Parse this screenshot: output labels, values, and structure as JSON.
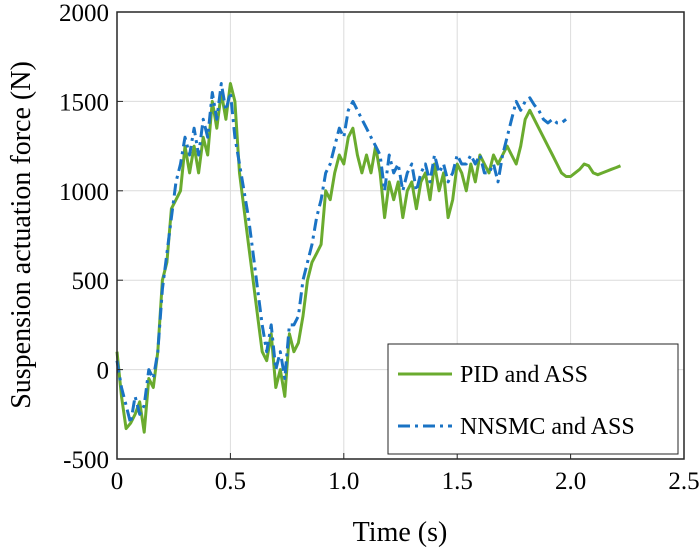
{
  "chart_data": {
    "type": "line",
    "xlabel": "Time (s)",
    "ylabel": "Suspension actuation force (N)",
    "xlim": [
      0,
      2.5
    ],
    "ylim": [
      -500,
      2000
    ],
    "xticks": [
      "0",
      "0.5",
      "1.0",
      "1.5",
      "2.0",
      "2.5"
    ],
    "xtick_values": [
      0,
      0.5,
      1.0,
      1.5,
      2.0,
      2.5
    ],
    "yticks": [
      "-500",
      "0",
      "500",
      "1000",
      "1500",
      "2000"
    ],
    "ytick_values": [
      -500,
      0,
      500,
      1000,
      1500,
      2000
    ],
    "grid": true,
    "legend_position": "bottom-right",
    "series": [
      {
        "name": "PID and ASS",
        "color": "#6aab2e",
        "style": "solid",
        "x": [
          0,
          0.02,
          0.04,
          0.06,
          0.08,
          0.1,
          0.12,
          0.14,
          0.16,
          0.18,
          0.2,
          0.22,
          0.24,
          0.26,
          0.28,
          0.3,
          0.32,
          0.34,
          0.36,
          0.38,
          0.4,
          0.42,
          0.44,
          0.46,
          0.48,
          0.5,
          0.52,
          0.54,
          0.56,
          0.58,
          0.6,
          0.62,
          0.64,
          0.66,
          0.68,
          0.7,
          0.72,
          0.74,
          0.76,
          0.78,
          0.8,
          0.82,
          0.84,
          0.86,
          0.88,
          0.9,
          0.92,
          0.94,
          0.96,
          0.98,
          1.0,
          1.02,
          1.04,
          1.06,
          1.08,
          1.1,
          1.12,
          1.14,
          1.16,
          1.18,
          1.2,
          1.22,
          1.24,
          1.26,
          1.28,
          1.3,
          1.32,
          1.34,
          1.36,
          1.38,
          1.4,
          1.42,
          1.44,
          1.46,
          1.48,
          1.5,
          1.52,
          1.54,
          1.56,
          1.58,
          1.6,
          1.62,
          1.64,
          1.66,
          1.68,
          1.7,
          1.72,
          1.74,
          1.76,
          1.78,
          1.8,
          1.82,
          1.84,
          1.86,
          1.88,
          1.9,
          1.92,
          1.94,
          1.96,
          1.98,
          2.0,
          2.02,
          2.04,
          2.06,
          2.08,
          2.1,
          2.12,
          2.14,
          2.16,
          2.18,
          2.2,
          2.22
        ],
        "y": [
          100,
          -150,
          -330,
          -300,
          -250,
          -180,
          -350,
          -50,
          -100,
          100,
          500,
          600,
          900,
          950,
          1000,
          1250,
          1100,
          1250,
          1100,
          1300,
          1200,
          1500,
          1350,
          1550,
          1400,
          1600,
          1500,
          1100,
          900,
          700,
          500,
          300,
          100,
          50,
          200,
          -100,
          0,
          -150,
          200,
          100,
          150,
          300,
          500,
          600,
          650,
          700,
          1000,
          950,
          1100,
          1200,
          1150,
          1300,
          1350,
          1200,
          1100,
          1200,
          1100,
          1250,
          1100,
          850,
          1050,
          950,
          1050,
          850,
          1000,
          1050,
          900,
          1050,
          1100,
          950,
          1150,
          1000,
          1100,
          850,
          950,
          1150,
          1100,
          1000,
          1150,
          1050,
          1200,
          1150,
          1100,
          1200,
          1150,
          1200,
          1250,
          1200,
          1150,
          1250,
          1400,
          1450,
          1400,
          1350,
          1300,
          1250,
          1200,
          1150,
          1100,
          1080,
          1080,
          1100,
          1120,
          1150,
          1140,
          1100,
          1090,
          1100,
          1110,
          1120,
          1130,
          1140
        ]
      },
      {
        "name": "NNSMC and ASS",
        "color": "#1a73c4",
        "style": "dashdot",
        "x": [
          0,
          0.02,
          0.04,
          0.06,
          0.08,
          0.1,
          0.12,
          0.14,
          0.16,
          0.18,
          0.2,
          0.22,
          0.24,
          0.26,
          0.28,
          0.3,
          0.32,
          0.34,
          0.36,
          0.38,
          0.4,
          0.42,
          0.44,
          0.46,
          0.48,
          0.5,
          0.52,
          0.54,
          0.56,
          0.58,
          0.6,
          0.62,
          0.64,
          0.66,
          0.68,
          0.7,
          0.72,
          0.74,
          0.76,
          0.78,
          0.8,
          0.82,
          0.84,
          0.86,
          0.88,
          0.9,
          0.92,
          0.94,
          0.96,
          0.98,
          1.0,
          1.02,
          1.04,
          1.06,
          1.08,
          1.1,
          1.12,
          1.14,
          1.16,
          1.18,
          1.2,
          1.22,
          1.24,
          1.26,
          1.28,
          1.3,
          1.32,
          1.34,
          1.36,
          1.38,
          1.4,
          1.42,
          1.44,
          1.46,
          1.48,
          1.5,
          1.52,
          1.54,
          1.56,
          1.58,
          1.6,
          1.62,
          1.64,
          1.66,
          1.68,
          1.7,
          1.72,
          1.74,
          1.76,
          1.78,
          1.8,
          1.82,
          1.84,
          1.86,
          1.88,
          1.9,
          1.92,
          1.94,
          1.96,
          1.98
        ],
        "y": [
          50,
          -100,
          -200,
          -300,
          -150,
          -250,
          -200,
          0,
          -50,
          100,
          450,
          650,
          850,
          1050,
          1150,
          1300,
          1200,
          1350,
          1200,
          1400,
          1300,
          1550,
          1400,
          1600,
          1450,
          1550,
          1300,
          1150,
          1000,
          850,
          650,
          450,
          250,
          100,
          250,
          0,
          100,
          -50,
          250,
          250,
          300,
          500,
          600,
          700,
          850,
          950,
          1100,
          1150,
          1250,
          1350,
          1300,
          1450,
          1500,
          1450,
          1400,
          1350,
          1300,
          1250,
          1200,
          1000,
          1200,
          1100,
          1150,
          1000,
          1100,
          1150,
          1000,
          1100,
          1150,
          1050,
          1200,
          1100,
          1150,
          1050,
          1100,
          1200,
          1150,
          1150,
          1200,
          1150,
          1200,
          1100,
          1100,
          1150,
          1050,
          1200,
          1300,
          1400,
          1500,
          1450,
          1500,
          1520,
          1480,
          1450,
          1400,
          1380,
          1400,
          1380,
          1380,
          1400
        ]
      }
    ]
  }
}
